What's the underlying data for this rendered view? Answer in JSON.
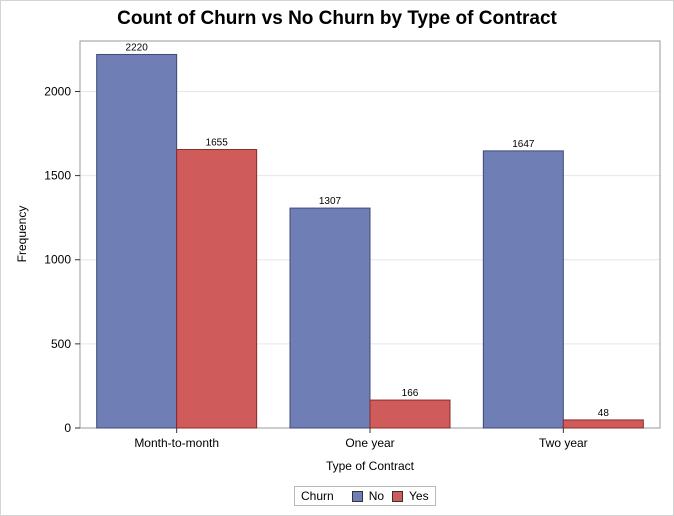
{
  "chart_data": {
    "type": "bar",
    "title": "Count of Churn vs No Churn by Type of Contract",
    "xlabel": "Type of Contract",
    "ylabel": "Frequency",
    "categories": [
      "Month-to-month",
      "One year",
      "Two year"
    ],
    "series": [
      {
        "name": "No",
        "values": [
          2220,
          1307,
          1647
        ],
        "color": "#6f7fb5"
      },
      {
        "name": "Yes",
        "values": [
          1655,
          166,
          48
        ],
        "color": "#d05b5b"
      }
    ],
    "ylim": [
      0,
      2300
    ],
    "yticks": [
      0,
      500,
      1000,
      1500,
      2000
    ],
    "grid": true,
    "legend": {
      "title": "Churn",
      "placement": "bottom-center"
    }
  }
}
